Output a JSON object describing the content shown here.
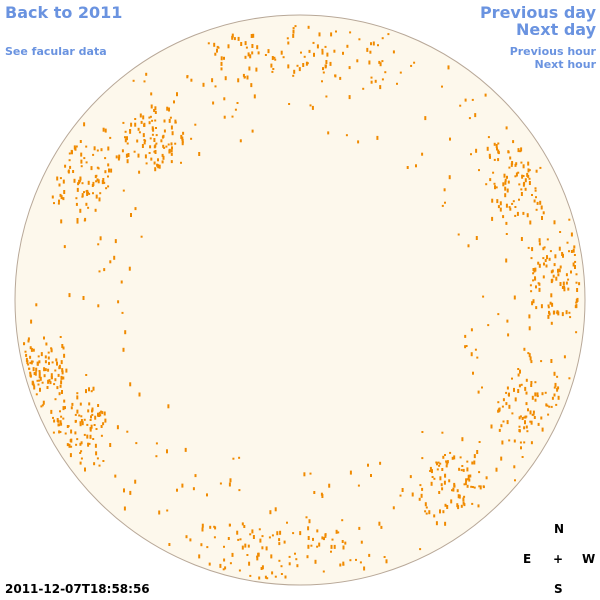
{
  "links": {
    "back": "Back to 2011",
    "facular": "See facular data",
    "previous_day": "Previous day",
    "next_day": "Next day",
    "previous_hour": "Previous hour",
    "next_hour": "Next hour"
  },
  "timestamp": "2011-12-07T18:58:56",
  "compass": {
    "north": "N",
    "east": "E",
    "center": "+",
    "west": "W",
    "south": "S"
  }
}
